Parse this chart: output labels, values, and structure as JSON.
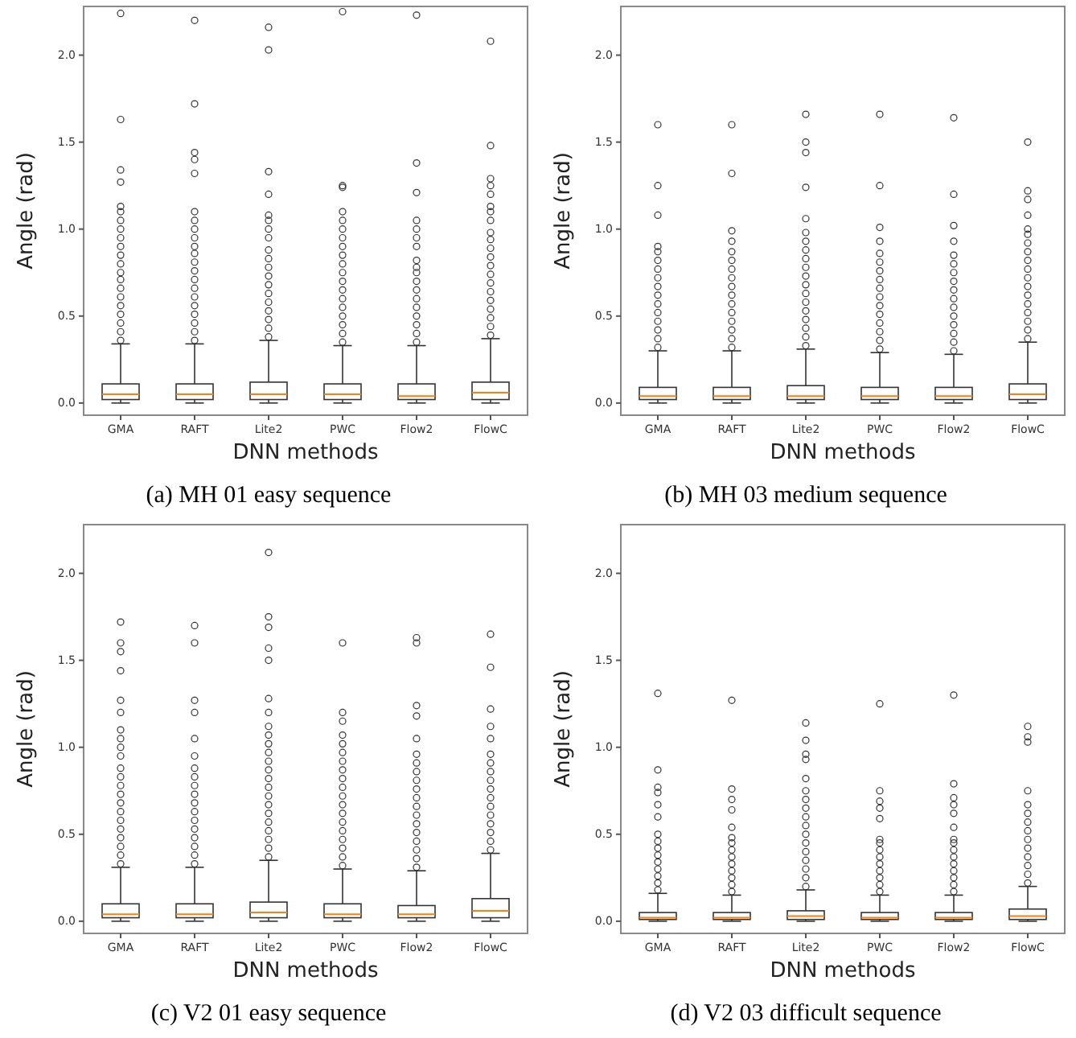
{
  "chart_data": [
    {
      "type": "box",
      "title": "(a) MH 01 easy sequence",
      "xlabel": "DNN methods",
      "ylabel": "Angle (rad)",
      "categories": [
        "GMA",
        "RAFT",
        "Lite2",
        "PWC",
        "Flow2",
        "FlowC"
      ],
      "ylim": [
        -0.07,
        2.28
      ],
      "yticks": [
        {
          "value": 0,
          "label": "0.0"
        },
        {
          "value": 0.5,
          "label": "0.5"
        },
        {
          "value": 1,
          "label": "1.0"
        },
        {
          "value": 1.5,
          "label": "1.5"
        },
        {
          "value": 2,
          "label": "2.0"
        }
      ],
      "color": "#333333",
      "grid": false,
      "boxes": [
        {
          "low": 0,
          "q1": 0.02,
          "median": 0.05,
          "q3": 0.11,
          "high": 0.34,
          "outliers": [
            0.36,
            0.41,
            0.46,
            0.51,
            0.56,
            0.61,
            0.66,
            0.71,
            0.75,
            0.8,
            0.85,
            0.9,
            0.95,
            1.0,
            1.05,
            1.1,
            1.13,
            1.27,
            1.34,
            1.63,
            2.24
          ]
        },
        {
          "low": 0,
          "q1": 0.02,
          "median": 0.05,
          "q3": 0.11,
          "high": 0.34,
          "outliers": [
            0.36,
            0.41,
            0.46,
            0.51,
            0.56,
            0.61,
            0.66,
            0.71,
            0.76,
            0.81,
            0.86,
            0.9,
            0.95,
            1.0,
            1.05,
            1.1,
            1.32,
            1.4,
            1.44,
            1.72,
            2.2
          ]
        },
        {
          "low": 0,
          "q1": 0.02,
          "median": 0.05,
          "q3": 0.12,
          "high": 0.36,
          "outliers": [
            0.38,
            0.43,
            0.48,
            0.53,
            0.58,
            0.63,
            0.68,
            0.73,
            0.78,
            0.83,
            0.88,
            0.95,
            1.0,
            1.05,
            1.08,
            1.2,
            1.33,
            2.03,
            2.16
          ]
        },
        {
          "low": 0,
          "q1": 0.02,
          "median": 0.05,
          "q3": 0.11,
          "high": 0.33,
          "outliers": [
            0.35,
            0.4,
            0.45,
            0.5,
            0.55,
            0.6,
            0.65,
            0.7,
            0.75,
            0.8,
            0.85,
            0.9,
            0.95,
            1.0,
            1.05,
            1.1,
            1.24,
            1.25,
            2.25
          ]
        },
        {
          "low": 0,
          "q1": 0.02,
          "median": 0.04,
          "q3": 0.11,
          "high": 0.33,
          "outliers": [
            0.35,
            0.4,
            0.45,
            0.5,
            0.55,
            0.6,
            0.65,
            0.7,
            0.75,
            0.78,
            0.82,
            0.9,
            0.95,
            1.0,
            1.05,
            1.21,
            1.38,
            2.23
          ]
        },
        {
          "low": 0,
          "q1": 0.02,
          "median": 0.06,
          "q3": 0.12,
          "high": 0.37,
          "outliers": [
            0.39,
            0.44,
            0.49,
            0.54,
            0.59,
            0.64,
            0.69,
            0.74,
            0.79,
            0.84,
            0.89,
            0.94,
            0.98,
            1.05,
            1.1,
            1.13,
            1.2,
            1.25,
            1.29,
            1.48,
            2.08
          ]
        }
      ]
    },
    {
      "type": "box",
      "title": "(b) MH 03 medium sequence",
      "xlabel": "DNN methods",
      "ylabel": "Angle (rad)",
      "categories": [
        "GMA",
        "RAFT",
        "Lite2",
        "PWC",
        "Flow2",
        "FlowC"
      ],
      "ylim": [
        -0.07,
        2.28
      ],
      "yticks": [
        {
          "value": 0,
          "label": "0.0"
        },
        {
          "value": 0.5,
          "label": "0.5"
        },
        {
          "value": 1,
          "label": "1.0"
        },
        {
          "value": 1.5,
          "label": "1.5"
        },
        {
          "value": 2,
          "label": "2.0"
        }
      ],
      "color": "#333333",
      "grid": false,
      "boxes": [
        {
          "low": 0,
          "q1": 0.02,
          "median": 0.04,
          "q3": 0.09,
          "high": 0.3,
          "outliers": [
            0.32,
            0.37,
            0.42,
            0.47,
            0.52,
            0.57,
            0.62,
            0.67,
            0.72,
            0.77,
            0.82,
            0.87,
            0.9,
            1.08,
            1.25,
            1.6
          ]
        },
        {
          "low": 0,
          "q1": 0.02,
          "median": 0.04,
          "q3": 0.09,
          "high": 0.3,
          "outliers": [
            0.32,
            0.37,
            0.42,
            0.47,
            0.52,
            0.57,
            0.62,
            0.67,
            0.72,
            0.77,
            0.82,
            0.87,
            0.93,
            0.99,
            1.32,
            1.6
          ]
        },
        {
          "low": 0,
          "q1": 0.02,
          "median": 0.04,
          "q3": 0.1,
          "high": 0.31,
          "outliers": [
            0.33,
            0.38,
            0.43,
            0.48,
            0.53,
            0.58,
            0.63,
            0.68,
            0.73,
            0.78,
            0.83,
            0.88,
            0.93,
            0.98,
            1.06,
            1.24,
            1.44,
            1.5,
            1.66
          ]
        },
        {
          "low": 0,
          "q1": 0.02,
          "median": 0.04,
          "q3": 0.09,
          "high": 0.29,
          "outliers": [
            0.31,
            0.36,
            0.41,
            0.46,
            0.51,
            0.56,
            0.61,
            0.66,
            0.71,
            0.76,
            0.81,
            0.86,
            0.93,
            1.01,
            1.25,
            1.66
          ]
        },
        {
          "low": 0,
          "q1": 0.02,
          "median": 0.04,
          "q3": 0.09,
          "high": 0.28,
          "outliers": [
            0.3,
            0.35,
            0.4,
            0.45,
            0.5,
            0.55,
            0.6,
            0.65,
            0.7,
            0.75,
            0.8,
            0.85,
            0.93,
            1.02,
            1.2,
            1.64
          ]
        },
        {
          "low": 0,
          "q1": 0.02,
          "median": 0.05,
          "q3": 0.11,
          "high": 0.35,
          "outliers": [
            0.37,
            0.42,
            0.47,
            0.52,
            0.57,
            0.62,
            0.67,
            0.72,
            0.77,
            0.82,
            0.87,
            0.92,
            0.97,
            1.0,
            1.08,
            1.17,
            1.22,
            1.5
          ]
        }
      ]
    },
    {
      "type": "box",
      "title": "(c) V2 01 easy sequence",
      "xlabel": "DNN methods",
      "ylabel": "Angle (rad)",
      "categories": [
        "GMA",
        "RAFT",
        "Lite2",
        "PWC",
        "Flow2",
        "FlowC"
      ],
      "ylim": [
        -0.07,
        2.28
      ],
      "yticks": [
        {
          "value": 0,
          "label": "0.0"
        },
        {
          "value": 0.5,
          "label": "0.5"
        },
        {
          "value": 1,
          "label": "1.0"
        },
        {
          "value": 1.5,
          "label": "1.5"
        },
        {
          "value": 2,
          "label": "2.0"
        }
      ],
      "color": "#333333",
      "grid": false,
      "boxes": [
        {
          "low": 0,
          "q1": 0.02,
          "median": 0.04,
          "q3": 0.1,
          "high": 0.31,
          "outliers": [
            0.33,
            0.38,
            0.43,
            0.48,
            0.53,
            0.58,
            0.63,
            0.68,
            0.73,
            0.78,
            0.83,
            0.88,
            0.95,
            1.0,
            1.05,
            1.1,
            1.2,
            1.27,
            1.44,
            1.55,
            1.6,
            1.72
          ]
        },
        {
          "low": 0,
          "q1": 0.02,
          "median": 0.04,
          "q3": 0.1,
          "high": 0.31,
          "outliers": [
            0.33,
            0.38,
            0.43,
            0.48,
            0.53,
            0.58,
            0.63,
            0.68,
            0.73,
            0.78,
            0.83,
            0.88,
            0.95,
            1.05,
            1.2,
            1.27,
            1.6,
            1.7
          ]
        },
        {
          "low": 0,
          "q1": 0.02,
          "median": 0.05,
          "q3": 0.11,
          "high": 0.35,
          "outliers": [
            0.37,
            0.42,
            0.47,
            0.52,
            0.57,
            0.62,
            0.67,
            0.72,
            0.77,
            0.82,
            0.87,
            0.92,
            0.97,
            1.02,
            1.07,
            1.12,
            1.2,
            1.28,
            1.5,
            1.57,
            1.69,
            1.75,
            2.12
          ]
        },
        {
          "low": 0,
          "q1": 0.02,
          "median": 0.04,
          "q3": 0.1,
          "high": 0.3,
          "outliers": [
            0.32,
            0.37,
            0.42,
            0.47,
            0.52,
            0.57,
            0.62,
            0.67,
            0.72,
            0.77,
            0.82,
            0.87,
            0.92,
            0.97,
            1.02,
            1.07,
            1.15,
            1.2,
            1.6
          ]
        },
        {
          "low": 0,
          "q1": 0.02,
          "median": 0.04,
          "q3": 0.09,
          "high": 0.29,
          "outliers": [
            0.31,
            0.36,
            0.41,
            0.46,
            0.51,
            0.56,
            0.61,
            0.66,
            0.71,
            0.76,
            0.81,
            0.86,
            0.91,
            0.96,
            1.05,
            1.18,
            1.24,
            1.6,
            1.63
          ]
        },
        {
          "low": 0,
          "q1": 0.02,
          "median": 0.06,
          "q3": 0.13,
          "high": 0.39,
          "outliers": [
            0.41,
            0.46,
            0.51,
            0.56,
            0.61,
            0.66,
            0.71,
            0.76,
            0.81,
            0.86,
            0.91,
            0.96,
            1.05,
            1.12,
            1.22,
            1.46,
            1.65
          ]
        }
      ]
    },
    {
      "type": "box",
      "title": "(d) V2 03 difficult sequence",
      "xlabel": "DNN methods",
      "ylabel": "Angle (rad)",
      "categories": [
        "GMA",
        "RAFT",
        "Lite2",
        "PWC",
        "Flow2",
        "FlowC"
      ],
      "ylim": [
        -0.07,
        2.28
      ],
      "yticks": [
        {
          "value": 0,
          "label": "0.0"
        },
        {
          "value": 0.5,
          "label": "0.5"
        },
        {
          "value": 1,
          "label": "1.0"
        },
        {
          "value": 1.5,
          "label": "1.5"
        },
        {
          "value": 2,
          "label": "2.0"
        }
      ],
      "color": "#333333",
      "grid": false,
      "boxes": [
        {
          "low": 0,
          "q1": 0.01,
          "median": 0.02,
          "q3": 0.05,
          "high": 0.16,
          "outliers": [
            0.18,
            0.22,
            0.26,
            0.3,
            0.34,
            0.38,
            0.42,
            0.46,
            0.5,
            0.6,
            0.67,
            0.74,
            0.77,
            0.87,
            1.31
          ]
        },
        {
          "low": 0,
          "q1": 0.01,
          "median": 0.02,
          "q3": 0.05,
          "high": 0.15,
          "outliers": [
            0.17,
            0.21,
            0.25,
            0.29,
            0.33,
            0.37,
            0.41,
            0.45,
            0.48,
            0.54,
            0.64,
            0.7,
            0.76,
            1.27
          ]
        },
        {
          "low": 0,
          "q1": 0.01,
          "median": 0.03,
          "q3": 0.06,
          "high": 0.18,
          "outliers": [
            0.2,
            0.25,
            0.3,
            0.35,
            0.4,
            0.45,
            0.5,
            0.55,
            0.6,
            0.65,
            0.7,
            0.75,
            0.82,
            0.93,
            0.96,
            1.04,
            1.14
          ]
        },
        {
          "low": 0,
          "q1": 0.01,
          "median": 0.02,
          "q3": 0.05,
          "high": 0.15,
          "outliers": [
            0.17,
            0.21,
            0.25,
            0.29,
            0.33,
            0.37,
            0.41,
            0.45,
            0.47,
            0.59,
            0.65,
            0.69,
            0.75,
            1.25
          ]
        },
        {
          "low": 0,
          "q1": 0.01,
          "median": 0.02,
          "q3": 0.05,
          "high": 0.15,
          "outliers": [
            0.17,
            0.21,
            0.25,
            0.29,
            0.33,
            0.37,
            0.41,
            0.45,
            0.47,
            0.54,
            0.62,
            0.67,
            0.71,
            0.79,
            1.3
          ]
        },
        {
          "low": 0,
          "q1": 0.01,
          "median": 0.03,
          "q3": 0.07,
          "high": 0.2,
          "outliers": [
            0.22,
            0.27,
            0.32,
            0.37,
            0.42,
            0.47,
            0.52,
            0.57,
            0.62,
            0.67,
            0.75,
            1.03,
            1.06,
            1.12
          ]
        }
      ]
    }
  ]
}
